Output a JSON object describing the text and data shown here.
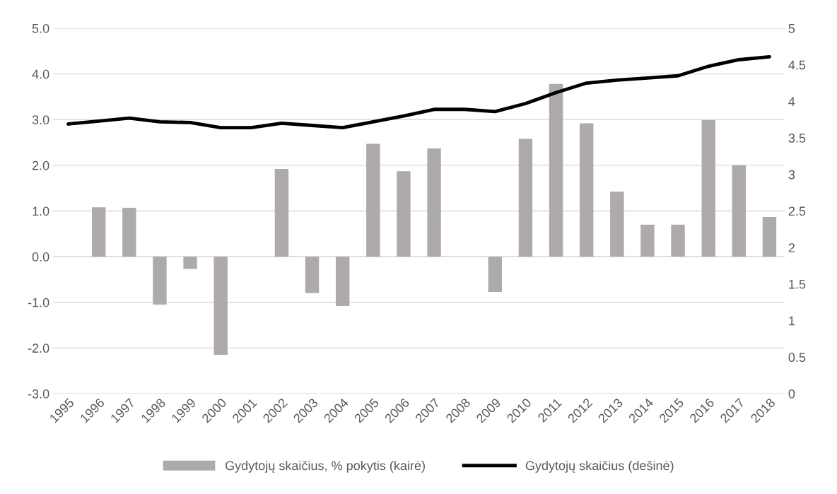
{
  "chart_data": {
    "type": "bar",
    "categories": [
      "1995",
      "1996",
      "1997",
      "1998",
      "1999",
      "2000",
      "2001",
      "2002",
      "2003",
      "2004",
      "2005",
      "2006",
      "2007",
      "2008",
      "2009",
      "2010",
      "2011",
      "2012",
      "2013",
      "2014",
      "2015",
      "2016",
      "2017",
      "2018"
    ],
    "series": [
      {
        "name": "Gydytojų skaičius, % pokytis (kairė)",
        "color": "#aeaaaa",
        "values": [
          0,
          1.08,
          1.07,
          -1.05,
          -0.27,
          -2.15,
          0,
          1.92,
          -0.8,
          -1.08,
          2.47,
          1.87,
          2.37,
          0,
          -0.77,
          2.58,
          3.78,
          2.92,
          1.42,
          0.7,
          0.7,
          2.99,
          2.0,
          0.87
        ]
      },
      {
        "name": "Gydytojų skaičius (dešinė)",
        "type": "line",
        "axis": "y2",
        "color": "#000000",
        "values": [
          3.69,
          3.73,
          3.77,
          3.72,
          3.71,
          3.64,
          3.64,
          3.7,
          3.67,
          3.64,
          3.72,
          3.8,
          3.89,
          3.89,
          3.86,
          3.97,
          4.12,
          4.25,
          4.29,
          4.32,
          4.35,
          4.48,
          4.57,
          4.61
        ]
      }
    ],
    "ylim": [
      -3,
      5
    ],
    "yticks": [
      {
        "value": -3,
        "label": "-3.0"
      },
      {
        "value": -2,
        "label": "-2.0"
      },
      {
        "value": -1,
        "label": "-1.0"
      },
      {
        "value": 0,
        "label": "0.0"
      },
      {
        "value": 1,
        "label": "1.0"
      },
      {
        "value": 2,
        "label": "2.0"
      },
      {
        "value": 3,
        "label": "3.0"
      },
      {
        "value": 4,
        "label": "4.0"
      },
      {
        "value": 5,
        "label": "5.0"
      }
    ],
    "y2lim": [
      0,
      5
    ],
    "y2ticks": [
      0,
      0.5,
      1,
      1.5,
      2,
      2.5,
      3,
      3.5,
      4,
      4.5,
      5
    ],
    "grid": "y",
    "legend": "bottom",
    "line_style": "solid",
    "marker": "none"
  }
}
